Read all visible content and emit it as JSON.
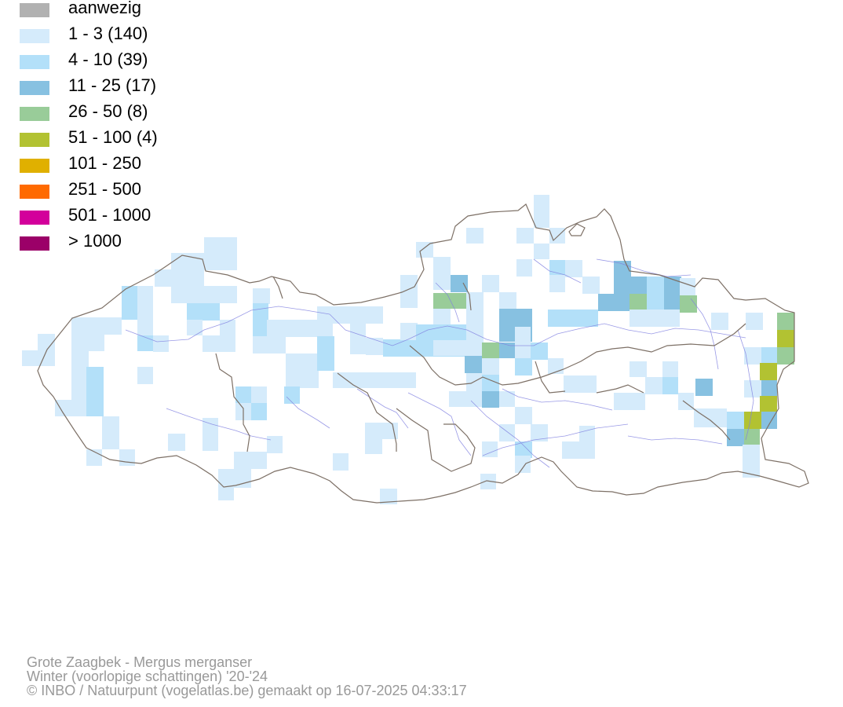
{
  "legend": [
    {
      "label": "aanwezig",
      "color": "#b1b1b1"
    },
    {
      "label": "1 - 3 (140)",
      "color": "#d5ebfb"
    },
    {
      "label": "4 - 10 (39)",
      "color": "#b3e0f9"
    },
    {
      "label": "11 - 25 (17)",
      "color": "#87c1e1"
    },
    {
      "label": "26 - 50 (8)",
      "color": "#99cc99"
    },
    {
      "label": "51 - 100 (4)",
      "color": "#b2c232"
    },
    {
      "label": "101 - 250",
      "color": "#e0b000"
    },
    {
      "label": "251 - 500",
      "color": "#ff6a00"
    },
    {
      "label": "501 - 1000",
      "color": "#d3009b"
    },
    {
      "label": "> 1000",
      "color": "#9b0068"
    }
  ],
  "map_colors": {
    "boundary": "#7d7066",
    "river": "#8080e0"
  },
  "credits": {
    "species": "Grote Zaagbek - Mergus merganser",
    "season": "Winter (voorlopige schattingen) '20-'24",
    "copyright": "© INBO / Natuurpunt (vogelatlas.be) gemaakt op 16-07-2025 04:33:17"
  }
}
